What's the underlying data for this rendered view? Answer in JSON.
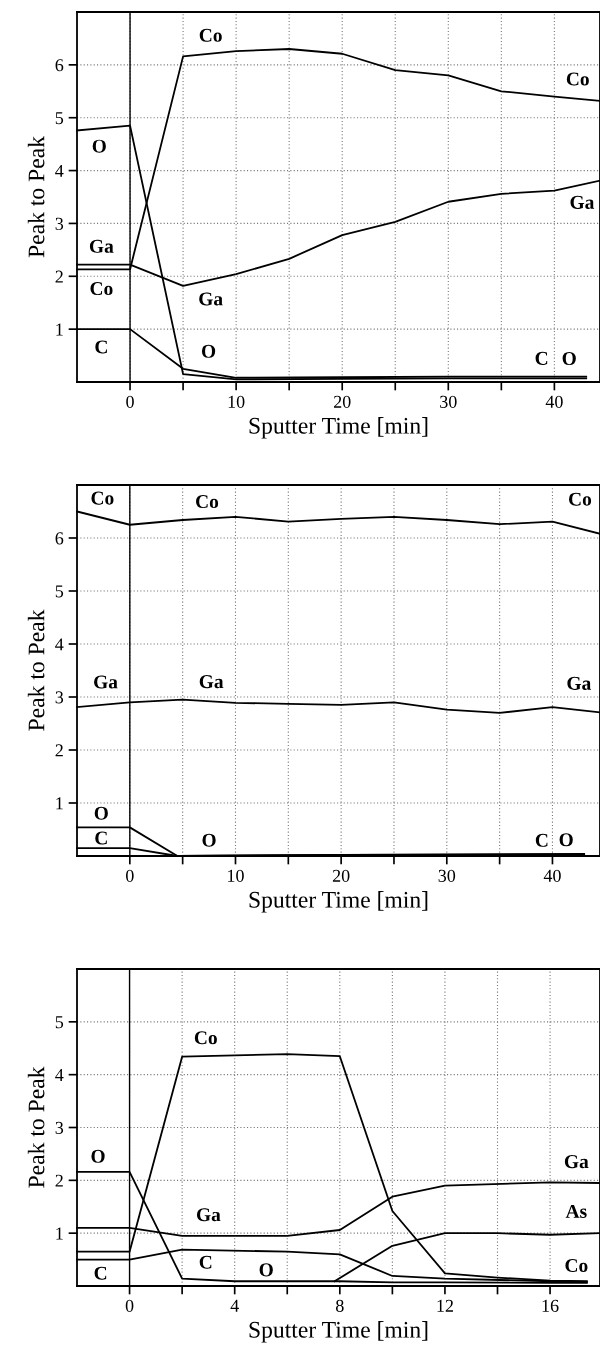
{
  "chart_data": [
    {
      "type": "line",
      "xlabel": "Sputter Time [min]",
      "ylabel": "Peak to Peak",
      "xlim": [
        -5,
        44.3
      ],
      "ylim": [
        0,
        7
      ],
      "xticks": [
        0,
        {
          "value": 5,
          "label": null
        },
        10,
        {
          "value": 15,
          "label": null
        },
        20,
        {
          "value": 25,
          "label": null
        },
        30,
        {
          "value": 35,
          "label": null
        },
        40
      ],
      "yticks": [
        1,
        2,
        3,
        4,
        5,
        6
      ],
      "grid": true,
      "marker": "none",
      "line_style": "solid",
      "ref_lines": [
        {
          "axis": "x",
          "value": 0,
          "color": "#000000"
        }
      ],
      "series": [
        {
          "name": "Co",
          "color": "#000000",
          "x": [
            -5,
            0,
            5,
            10,
            15,
            20,
            25,
            30,
            35,
            40,
            44.3
          ],
          "values": [
            2.13,
            2.13,
            6.16,
            6.26,
            6.3,
            6.21,
            5.9,
            5.8,
            5.5,
            5.4,
            5.32
          ]
        },
        {
          "name": "Ga",
          "color": "#000000",
          "x": [
            -5,
            0,
            5,
            10,
            15,
            20,
            25,
            30,
            35,
            40,
            44.3
          ],
          "values": [
            2.22,
            2.22,
            1.82,
            2.04,
            2.33,
            2.78,
            3.03,
            3.41,
            3.56,
            3.62,
            3.81
          ]
        },
        {
          "name": "O",
          "color": "#000000",
          "x": [
            -5,
            0,
            5,
            10,
            20,
            30,
            43
          ],
          "values": [
            4.76,
            4.85,
            0.15,
            0.05,
            0.06,
            0.07,
            0.07
          ]
        },
        {
          "name": "C",
          "color": "#000000",
          "x": [
            -5,
            0,
            5,
            10,
            20,
            30,
            43
          ],
          "values": [
            1.0,
            1.0,
            0.25,
            0.08,
            0.09,
            0.1,
            0.1
          ]
        }
      ]
    },
    {
      "type": "line",
      "xlabel": "Sputter Time [min]",
      "ylabel": "Peak to Peak",
      "xlim": [
        -5,
        44.5
      ],
      "ylim": [
        0,
        7
      ],
      "xticks": [
        0,
        {
          "value": 5,
          "label": null
        },
        10,
        {
          "value": 15,
          "label": null
        },
        20,
        {
          "value": 25,
          "label": null
        },
        30,
        {
          "value": 35,
          "label": null
        },
        40
      ],
      "yticks": [
        1,
        2,
        3,
        4,
        5,
        6
      ],
      "grid": true,
      "marker": "none",
      "line_style": "solid",
      "ref_lines": [
        {
          "axis": "x",
          "value": 0,
          "color": "#000000"
        }
      ],
      "series": [
        {
          "name": "Co",
          "color": "#000000",
          "x": [
            -5,
            0,
            5,
            10,
            15,
            20,
            25,
            30,
            35,
            40,
            44.5
          ],
          "values": [
            6.5,
            6.25,
            6.34,
            6.4,
            6.31,
            6.36,
            6.4,
            6.34,
            6.26,
            6.31,
            6.08
          ]
        },
        {
          "name": "Ga",
          "color": "#000000",
          "x": [
            -5,
            0,
            5,
            10,
            15,
            20,
            25,
            30,
            35,
            40,
            44.5
          ],
          "values": [
            2.81,
            2.9,
            2.95,
            2.89,
            2.87,
            2.85,
            2.9,
            2.76,
            2.7,
            2.81,
            2.71
          ]
        },
        {
          "name": "O",
          "color": "#000000",
          "x": [
            -5,
            0,
            4.5,
            20,
            43
          ],
          "values": [
            0.54,
            0.54,
            0.0,
            0.02,
            0.04
          ]
        },
        {
          "name": "C",
          "color": "#000000",
          "x": [
            -5,
            0,
            4.5,
            20,
            43
          ],
          "values": [
            0.15,
            0.15,
            0.0,
            0.02,
            0.03
          ]
        }
      ]
    },
    {
      "type": "line",
      "xlabel": "Sputter Time [min]",
      "ylabel": "Peak to Peak",
      "xlim": [
        -2,
        17.9
      ],
      "ylim": [
        0,
        6
      ],
      "xticks": [
        0,
        {
          "value": 2,
          "label": null
        },
        4,
        {
          "value": 6,
          "label": null
        },
        8,
        {
          "value": 10,
          "label": null
        },
        12,
        {
          "value": 14,
          "label": null
        },
        16
      ],
      "yticks": [
        1,
        2,
        3,
        4,
        5
      ],
      "grid": true,
      "marker": "none",
      "line_style": "solid",
      "ref_lines": [
        {
          "axis": "x",
          "value": 0,
          "color": "#000000"
        }
      ],
      "series": [
        {
          "name": "Co",
          "color": "#000000",
          "x": [
            -2,
            0,
            2,
            6,
            8,
            10,
            12,
            14,
            16,
            17.4
          ],
          "values": [
            0.65,
            0.65,
            4.34,
            4.39,
            4.35,
            1.42,
            0.24,
            0.16,
            0.1,
            0.09
          ]
        },
        {
          "name": "O",
          "color": "#000000",
          "x": [
            -2,
            0,
            2,
            4,
            8,
            10,
            12,
            16,
            17.4
          ],
          "values": [
            2.16,
            2.16,
            0.14,
            0.09,
            0.09,
            0.07,
            0.07,
            0.06,
            0.06
          ]
        },
        {
          "name": "Ga",
          "color": "#000000",
          "x": [
            -2,
            0,
            2,
            6,
            8,
            10,
            12,
            16,
            17.9
          ],
          "values": [
            1.1,
            1.1,
            0.95,
            0.95,
            1.06,
            1.69,
            1.9,
            1.96,
            1.95
          ]
        },
        {
          "name": "C",
          "color": "#000000",
          "x": [
            -2,
            0,
            2,
            6,
            8,
            10,
            12,
            16,
            17.4
          ],
          "values": [
            0.5,
            0.5,
            0.69,
            0.65,
            0.6,
            0.19,
            0.14,
            0.09,
            0.08
          ]
        },
        {
          "name": "As",
          "color": "#000000",
          "x": [
            7.8,
            10,
            12,
            14,
            16,
            17.9
          ],
          "values": [
            0.09,
            0.76,
            1.0,
            1.0,
            0.97,
            1.0
          ]
        }
      ]
    }
  ]
}
